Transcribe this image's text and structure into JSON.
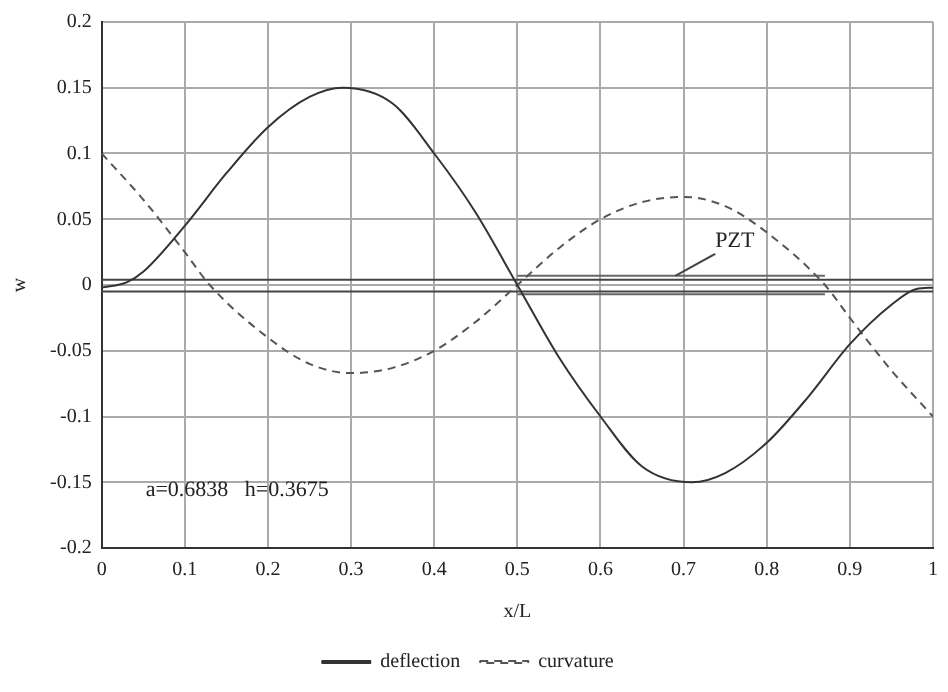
{
  "chart_data": {
    "type": "line",
    "xlabel": "x/L",
    "ylabel": "w",
    "xlim": [
      0,
      1
    ],
    "xticks": [
      0,
      0.1,
      0.2,
      0.3,
      0.4,
      0.5,
      0.6,
      0.7,
      0.8,
      0.9,
      1
    ],
    "ylim": [
      -0.2,
      0.2
    ],
    "yticks": [
      -0.2,
      -0.15,
      -0.1,
      -0.05,
      0,
      0.05,
      0.1,
      0.15,
      0.2
    ],
    "grid": true,
    "legend": "bottom",
    "marker": "none",
    "series": [
      {
        "name": "deflection",
        "color": "#333333",
        "line_style": "solid",
        "x": [
          0,
          0.03,
          0.05,
          0.1,
          0.15,
          0.2,
          0.25,
          0.29,
          0.35,
          0.4,
          0.45,
          0.5,
          0.55,
          0.6,
          0.65,
          0.71,
          0.75,
          0.8,
          0.85,
          0.9,
          0.95,
          0.98,
          1
        ],
        "values": [
          -0.002,
          0.002,
          0.01,
          0.045,
          0.085,
          0.12,
          0.143,
          0.15,
          0.138,
          0.1,
          0.055,
          0,
          -0.055,
          -0.1,
          -0.138,
          -0.15,
          -0.143,
          -0.12,
          -0.085,
          -0.045,
          -0.015,
          -0.003,
          -0.002
        ]
      },
      {
        "name": "curvature",
        "color": "#555555",
        "line_style": "dashed",
        "x": [
          0,
          0.05,
          0.1,
          0.13,
          0.2,
          0.25,
          0.3,
          0.35,
          0.4,
          0.45,
          0.5,
          0.55,
          0.6,
          0.65,
          0.7,
          0.75,
          0.8,
          0.87,
          0.9,
          0.95,
          1
        ],
        "values": [
          0.1,
          0.065,
          0.025,
          0,
          -0.04,
          -0.06,
          -0.067,
          -0.063,
          -0.05,
          -0.028,
          0,
          0.028,
          0.05,
          0.063,
          0.067,
          0.06,
          0.04,
          0,
          -0.025,
          -0.065,
          -0.1
        ]
      },
      {
        "color": "#444444",
        "line_style": "solid",
        "x": [
          0,
          1
        ],
        "values": [
          0.004,
          0.004
        ]
      },
      {
        "color": "#444444",
        "line_style": "solid",
        "x": [
          0,
          1
        ],
        "values": [
          -0.005,
          -0.005
        ]
      },
      {
        "color": "#666666",
        "line_style": "solid",
        "x": [
          0.5,
          0.87
        ],
        "values": [
          0.007,
          0.007
        ]
      },
      {
        "color": "#666666",
        "line_style": "solid",
        "x": [
          0.5,
          0.87
        ],
        "values": [
          -0.007,
          -0.007
        ]
      }
    ],
    "annotations": [
      {
        "text": "PZT",
        "x": 0.69,
        "y": 0.007
      },
      "a=0.6838   h=0.3675"
    ]
  }
}
